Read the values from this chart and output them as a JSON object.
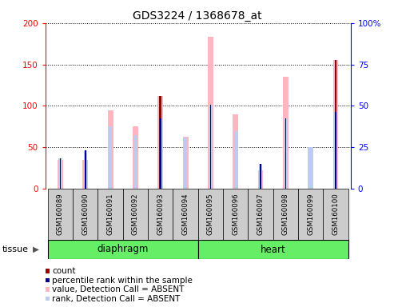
{
  "title": "GDS3224 / 1368678_at",
  "samples": [
    "GSM160089",
    "GSM160090",
    "GSM160091",
    "GSM160092",
    "GSM160093",
    "GSM160094",
    "GSM160095",
    "GSM160096",
    "GSM160097",
    "GSM160098",
    "GSM160099",
    "GSM160100"
  ],
  "pink_values": [
    35,
    35,
    95,
    75,
    112,
    63,
    183,
    90,
    22,
    135,
    50,
    155
  ],
  "lightblue_values": [
    37,
    46,
    75,
    65,
    84,
    62,
    101,
    70,
    30,
    85,
    50,
    93
  ],
  "red_values": [
    0,
    0,
    0,
    0,
    112,
    0,
    0,
    0,
    0,
    0,
    0,
    155
  ],
  "blue_values": [
    37,
    46,
    0,
    0,
    85,
    0,
    101,
    0,
    30,
    85,
    0,
    93
  ],
  "ylim_left": [
    0,
    200
  ],
  "ylim_right": [
    0,
    100
  ],
  "yticks_left": [
    0,
    50,
    100,
    150,
    200
  ],
  "ytick_labels_left": [
    "0",
    "50",
    "100",
    "150",
    "200"
  ],
  "yticks_right": [
    0,
    25,
    50,
    75,
    100
  ],
  "ytick_labels_right": [
    "0",
    "25",
    "50",
    "75",
    "100%"
  ],
  "groups": [
    {
      "label": "diaphragm",
      "start": 0,
      "end": 5
    },
    {
      "label": "heart",
      "start": 6,
      "end": 11
    }
  ],
  "tissue_label": "tissue",
  "color_pink": "#FFB6C1",
  "color_lightblue": "#BBCCEE",
  "color_red": "#990000",
  "color_blue": "#000099",
  "color_group_bg": "#66EE66",
  "color_sample_bg": "#CCCCCC",
  "legend_items": [
    {
      "color": "#990000",
      "label": "count"
    },
    {
      "color": "#000099",
      "label": "percentile rank within the sample"
    },
    {
      "color": "#FFB6C1",
      "label": "value, Detection Call = ABSENT"
    },
    {
      "color": "#BBCCEE",
      "label": "rank, Detection Call = ABSENT"
    }
  ]
}
